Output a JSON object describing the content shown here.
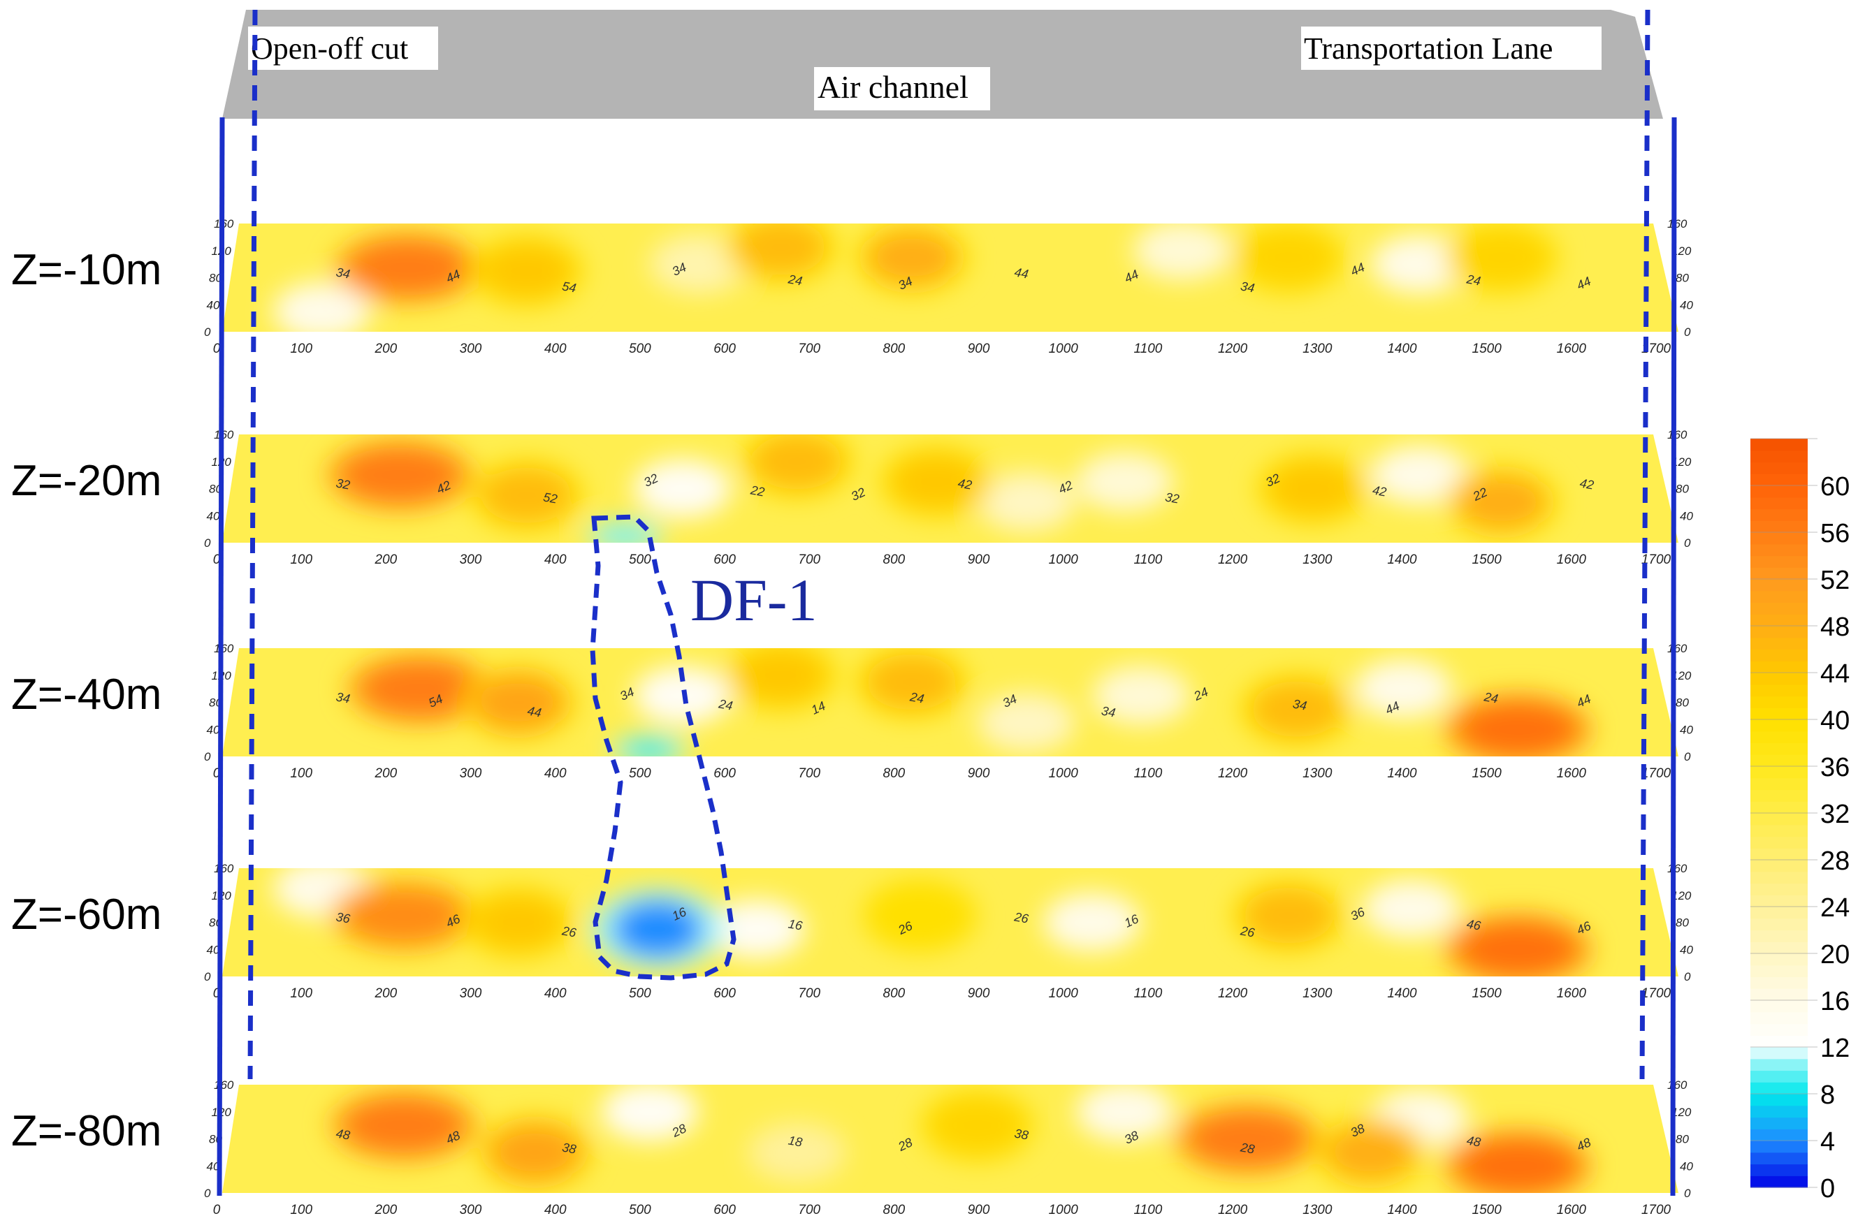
{
  "header": {
    "open_off_cut_label": "Open-off cut",
    "air_channel_label": "Air channel",
    "transportation_lane_label": "Transportation Lane"
  },
  "anomaly": {
    "label": "DF-1",
    "color": "#1a2a9e"
  },
  "x_ticks": [
    "0",
    "100",
    "200",
    "300",
    "400",
    "500",
    "600",
    "700",
    "800",
    "900",
    "1000",
    "1100",
    "1200",
    "1300",
    "1400",
    "1500",
    "1600",
    "1700"
  ],
  "y_ticks": [
    "0",
    "40",
    "80",
    "120",
    "160"
  ],
  "layers": [
    {
      "label": "Z=-10m",
      "contour_labels": [
        "34",
        "44",
        "54",
        "34",
        "24",
        "34",
        "44",
        "44",
        "34",
        "44",
        "24",
        "44"
      ],
      "hot": [
        {
          "x": 225,
          "y": 95,
          "level": 56
        },
        {
          "x": 680,
          "y": 125,
          "level": 46
        },
        {
          "x": 840,
          "y": 110,
          "level": 48
        },
        {
          "x": 370,
          "y": 90,
          "level": 44
        },
        {
          "x": 1300,
          "y": 110,
          "level": 42
        },
        {
          "x": 1560,
          "y": 110,
          "level": 42
        }
      ],
      "cold": [],
      "white": [
        {
          "x": 1170,
          "y": 120,
          "level": 18
        },
        {
          "x": 1460,
          "y": 100,
          "level": 16
        },
        {
          "x": 580,
          "y": 100,
          "level": 22
        },
        {
          "x": 120,
          "y": 30,
          "level": 16
        }
      ]
    },
    {
      "label": "Z=-20m",
      "contour_labels": [
        "32",
        "42",
        "52",
        "32",
        "22",
        "32",
        "42",
        "42",
        "32",
        "32",
        "42",
        "22",
        "42"
      ],
      "hot": [
        {
          "x": 215,
          "y": 100,
          "level": 56
        },
        {
          "x": 370,
          "y": 70,
          "level": 46
        },
        {
          "x": 700,
          "y": 120,
          "level": 46
        },
        {
          "x": 870,
          "y": 90,
          "level": 44
        },
        {
          "x": 1330,
          "y": 80,
          "level": 44
        },
        {
          "x": 1560,
          "y": 60,
          "level": 48
        }
      ],
      "cold": [
        {
          "x": 490,
          "y": 10,
          "level": 10
        }
      ],
      "white": [
        {
          "x": 560,
          "y": 80,
          "level": 14
        },
        {
          "x": 1100,
          "y": 90,
          "level": 18
        },
        {
          "x": 1460,
          "y": 100,
          "level": 16
        },
        {
          "x": 980,
          "y": 60,
          "level": 20
        }
      ]
    },
    {
      "label": "Z=-40m",
      "contour_labels": [
        "34",
        "54",
        "44",
        "34",
        "24",
        "14",
        "24",
        "34",
        "34",
        "24",
        "34",
        "44",
        "24",
        "44"
      ],
      "hot": [
        {
          "x": 240,
          "y": 100,
          "level": 56
        },
        {
          "x": 360,
          "y": 80,
          "level": 50
        },
        {
          "x": 680,
          "y": 120,
          "level": 44
        },
        {
          "x": 840,
          "y": 110,
          "level": 46
        },
        {
          "x": 1310,
          "y": 70,
          "level": 46
        },
        {
          "x": 1580,
          "y": 40,
          "level": 58
        }
      ],
      "cold": [
        {
          "x": 520,
          "y": 10,
          "level": 8
        }
      ],
      "white": [
        {
          "x": 560,
          "y": 90,
          "level": 14
        },
        {
          "x": 1120,
          "y": 90,
          "level": 18
        },
        {
          "x": 1440,
          "y": 100,
          "level": 16
        },
        {
          "x": 980,
          "y": 50,
          "level": 20
        }
      ]
    },
    {
      "label": "Z=-60m",
      "contour_labels": [
        "36",
        "46",
        "26",
        "16",
        "16",
        "26",
        "26",
        "16",
        "26",
        "36",
        "46",
        "46"
      ],
      "hot": [
        {
          "x": 220,
          "y": 90,
          "level": 54
        },
        {
          "x": 360,
          "y": 80,
          "level": 44
        },
        {
          "x": 1300,
          "y": 90,
          "level": 46
        },
        {
          "x": 1580,
          "y": 40,
          "level": 58
        },
        {
          "x": 850,
          "y": 90,
          "level": 40
        }
      ],
      "cold": [
        {
          "x": 530,
          "y": 70,
          "level": 4
        }
      ],
      "white": [
        {
          "x": 650,
          "y": 70,
          "level": 14
        },
        {
          "x": 1060,
          "y": 80,
          "level": 16
        },
        {
          "x": 1450,
          "y": 100,
          "level": 16
        },
        {
          "x": 120,
          "y": 130,
          "level": 16
        }
      ]
    },
    {
      "label": "Z=-80m",
      "contour_labels": [
        "48",
        "48",
        "38",
        "28",
        "18",
        "28",
        "38",
        "38",
        "28",
        "38",
        "48",
        "48"
      ],
      "hot": [
        {
          "x": 220,
          "y": 100,
          "level": 56
        },
        {
          "x": 380,
          "y": 60,
          "level": 50
        },
        {
          "x": 1250,
          "y": 80,
          "level": 56
        },
        {
          "x": 1400,
          "y": 60,
          "level": 48
        },
        {
          "x": 1580,
          "y": 40,
          "level": 58
        },
        {
          "x": 920,
          "y": 100,
          "level": 42
        }
      ],
      "cold": [],
      "white": [
        {
          "x": 520,
          "y": 120,
          "level": 14
        },
        {
          "x": 1100,
          "y": 120,
          "level": 16
        },
        {
          "x": 1460,
          "y": 110,
          "level": 16
        },
        {
          "x": 700,
          "y": 60,
          "level": 24
        }
      ]
    }
  ],
  "colorbar": {
    "ticks": [
      "0",
      "4",
      "8",
      "12",
      "16",
      "20",
      "24",
      "28",
      "32",
      "36",
      "40",
      "44",
      "48",
      "52",
      "56",
      "60"
    ],
    "stops": [
      {
        "value": 0,
        "color": "#0000e6"
      },
      {
        "value": 4,
        "color": "#1e8cff"
      },
      {
        "value": 8,
        "color": "#00e8ec"
      },
      {
        "value": 11,
        "color": "#a6f6f8"
      },
      {
        "value": 12,
        "color": "#ffffff"
      },
      {
        "value": 16,
        "color": "#fffbe8"
      },
      {
        "value": 20,
        "color": "#fff6c2"
      },
      {
        "value": 24,
        "color": "#fff19a"
      },
      {
        "value": 28,
        "color": "#ffee72"
      },
      {
        "value": 32,
        "color": "#ffec48"
      },
      {
        "value": 36,
        "color": "#ffe81e"
      },
      {
        "value": 40,
        "color": "#ffe000"
      },
      {
        "value": 44,
        "color": "#ffc800"
      },
      {
        "value": 48,
        "color": "#ffae14"
      },
      {
        "value": 52,
        "color": "#ff9a1e"
      },
      {
        "value": 56,
        "color": "#ff7d14"
      },
      {
        "value": 60,
        "color": "#ff6408"
      },
      {
        "value": 64,
        "color": "#f55200"
      }
    ]
  },
  "colors": {
    "header_gray": "#b4b4b4",
    "boundary_blue": "#1a2fc9",
    "base_yellow": "#ffee50"
  }
}
